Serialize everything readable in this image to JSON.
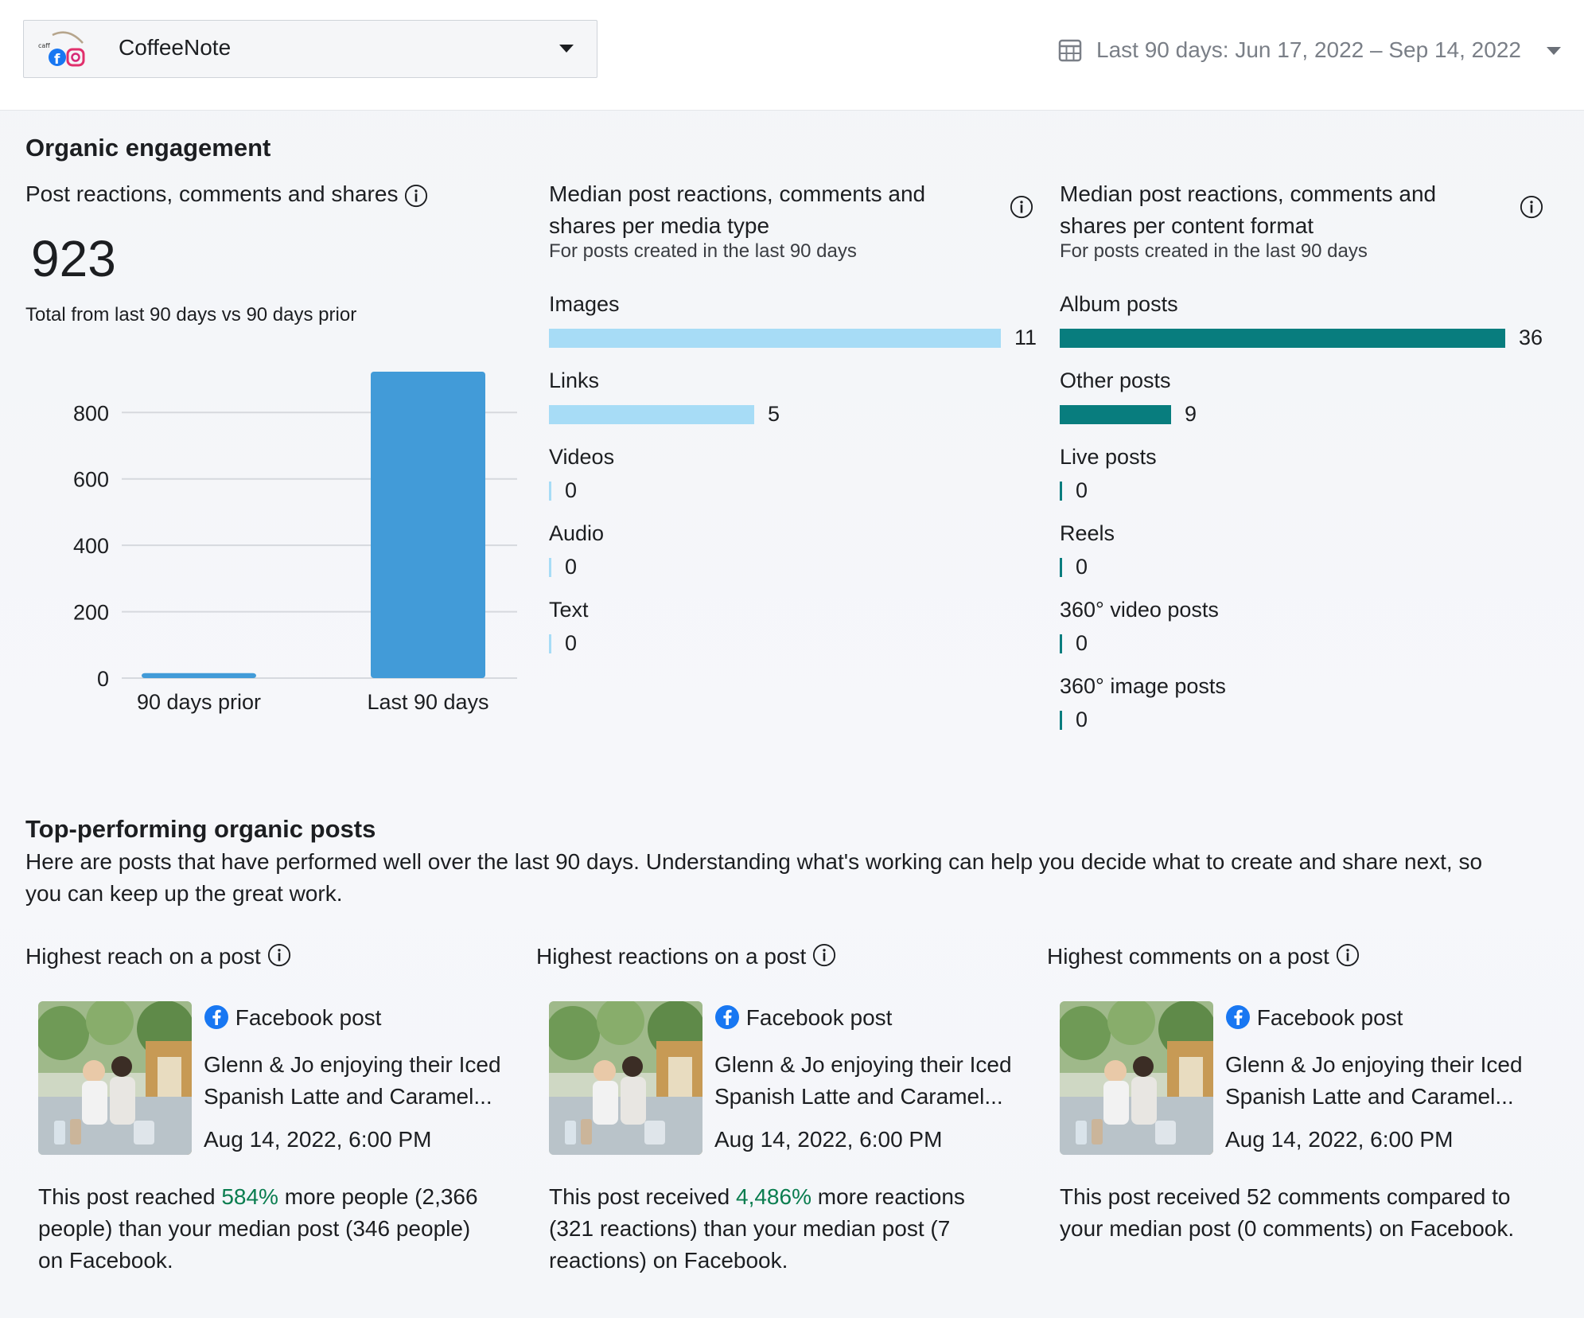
{
  "header": {
    "account_name": "CoffeeNote",
    "date_range": "Last 90 days: Jun 17, 2022 – Sep 14, 2022"
  },
  "organic": {
    "title": "Organic engagement",
    "total": {
      "label": "Post reactions, comments and shares",
      "value": "923",
      "caption": "Total from last 90 days vs 90 days prior"
    },
    "media_type": {
      "title": "Median post reactions, comments and shares per media type",
      "title_line1": "Median post reactions, comments and",
      "title_line2": "shares per media type",
      "subtitle": "For posts created in the last 90 days",
      "items": [
        {
          "label": "Images",
          "value": "11",
          "num": 11
        },
        {
          "label": "Links",
          "value": "5",
          "num": 5
        },
        {
          "label": "Videos",
          "value": "0",
          "num": 0
        },
        {
          "label": "Audio",
          "value": "0",
          "num": 0
        },
        {
          "label": "Text",
          "value": "0",
          "num": 0
        }
      ]
    },
    "content_format": {
      "title_line1": "Median post reactions, comments and",
      "title_line2": "shares per content format",
      "subtitle": "For posts created in the last 90 days",
      "items": [
        {
          "label": "Album posts",
          "value": "36",
          "num": 36
        },
        {
          "label": "Other posts",
          "value": "9",
          "num": 9
        },
        {
          "label": "Live posts",
          "value": "0",
          "num": 0
        },
        {
          "label": "Reels",
          "value": "0",
          "num": 0
        },
        {
          "label": "360° video posts",
          "value": "0",
          "num": 0
        },
        {
          "label": "360° image posts",
          "value": "0",
          "num": 0
        }
      ]
    }
  },
  "chart_data": {
    "type": "bar",
    "categories": [
      "90 days prior",
      "Last 90 days"
    ],
    "values": [
      15,
      923
    ],
    "ylim": [
      0,
      923
    ],
    "yticks": [
      "0",
      "200",
      "400",
      "600",
      "800"
    ],
    "ytick_values": [
      0,
      200,
      400,
      600,
      800
    ],
    "title": "Post reactions, comments and shares",
    "color": "#429bd8"
  },
  "top_posts": {
    "title": "Top-performing organic posts",
    "desc_line1": "Here are posts that have performed well over the last 90 days. Understanding what's working can help you decide what to create and share next, so",
    "desc_line2": "you can keep up the great work.",
    "cards": [
      {
        "heading": "Highest reach on a post",
        "source": "Facebook post",
        "text_line1": "Glenn & Jo enjoying their Iced",
        "text_line2": "Spanish Latte and Caramel...",
        "date": "Aug 14, 2022, 6:00 PM",
        "s_pre": "This post reached ",
        "s_hl": "584%",
        "s_post": " more people (2,366",
        "s_line2": "people) than your median post (346 people)",
        "s_line3": "on Facebook."
      },
      {
        "heading": "Highest reactions on a post",
        "source": "Facebook post",
        "text_line1": "Glenn & Jo enjoying their Iced",
        "text_line2": "Spanish Latte and Caramel...",
        "date": "Aug 14, 2022, 6:00 PM",
        "s_pre": "This post received ",
        "s_hl": "4,486%",
        "s_post": " more reactions",
        "s_line2": "(321 reactions) than your median post (7",
        "s_line3": "reactions) on Facebook."
      },
      {
        "heading": "Highest comments on a post",
        "source": "Facebook post",
        "text_line1": "Glenn & Jo enjoying their Iced",
        "text_line2": "Spanish Latte and Caramel...",
        "date": "Aug 14, 2022, 6:00 PM",
        "s_pre": "This post received 52 comments compared to",
        "s_hl": "",
        "s_post": "",
        "s_line2": "your median post (0 comments) on Facebook.",
        "s_line3": ""
      }
    ]
  },
  "colors": {
    "media_bar": "#a7dcf6",
    "format_bar": "#087d7e",
    "highlight": "#0a7d4f"
  }
}
